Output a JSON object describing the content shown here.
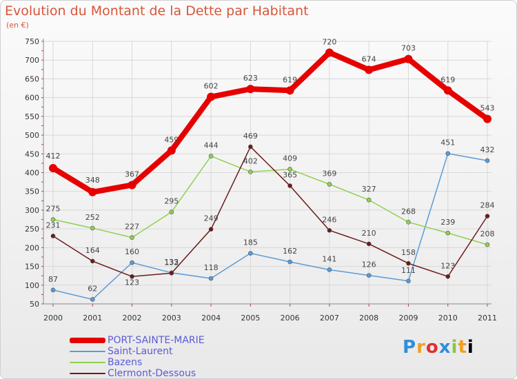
{
  "chart_data": {
    "type": "line",
    "title": "Evolution du Montant de la Dette par Habitant",
    "subtitle": "(en €)",
    "x": [
      "2000",
      "2001",
      "2002",
      "2003",
      "2004",
      "2005",
      "2006",
      "2007",
      "2008",
      "2009",
      "2010",
      "2011"
    ],
    "ylim": [
      50,
      750
    ],
    "yticks": [
      50,
      100,
      150,
      200,
      250,
      300,
      350,
      400,
      450,
      500,
      550,
      600,
      650,
      700,
      750
    ],
    "grid": true,
    "legend_position": "bottom-left",
    "series": [
      {
        "name": "PORT-SAINTE-MARIE",
        "color": "#e60000",
        "values": [
          412,
          348,
          367,
          459,
          602,
          623,
          619,
          720,
          674,
          703,
          619,
          543
        ]
      },
      {
        "name": "Saint-Laurent",
        "color": "#5b9bd5",
        "values": [
          87,
          62,
          160,
          133,
          118,
          185,
          162,
          141,
          126,
          111,
          451,
          432
        ]
      },
      {
        "name": "Bazens",
        "color": "#8fd14f",
        "values": [
          275,
          252,
          227,
          295,
          444,
          402,
          409,
          369,
          327,
          268,
          239,
          208
        ]
      },
      {
        "name": "Clermont-Dessous",
        "color": "#6b1a1a",
        "values": [
          231,
          164,
          123,
          132,
          249,
          469,
          365,
          246,
          210,
          158,
          123,
          284
        ]
      }
    ]
  },
  "logo": {
    "letters": [
      "P",
      "r",
      "o",
      "x",
      "i",
      "t",
      "i"
    ]
  }
}
